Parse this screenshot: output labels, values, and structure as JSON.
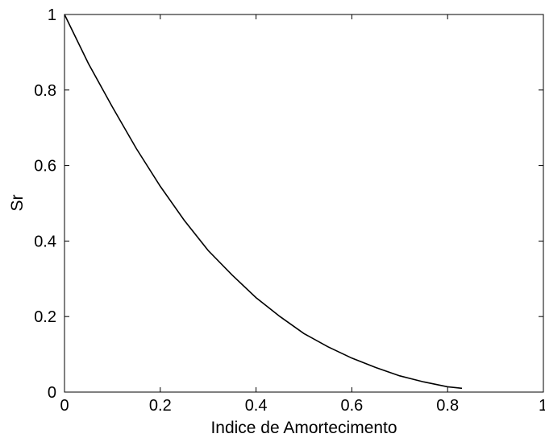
{
  "chart_data": {
    "type": "line",
    "title": "",
    "xlabel": "Indice de Amortecimento",
    "ylabel": "Sr",
    "xlim": [
      0,
      1
    ],
    "ylim": [
      0,
      1
    ],
    "xticks": [
      0,
      0.2,
      0.4,
      0.6,
      0.8,
      1
    ],
    "yticks": [
      0,
      0.2,
      0.4,
      0.6,
      0.8,
      1
    ],
    "xtick_labels": [
      "0",
      "0.2",
      "0.4",
      "0.6",
      "0.8",
      "1"
    ],
    "ytick_labels": [
      "0",
      "0.2",
      "0.4",
      "0.6",
      "0.8",
      "1"
    ],
    "grid": false,
    "legend": "none",
    "line_color": "#000000",
    "series": [
      {
        "x": [
          0,
          0.05,
          0.1,
          0.15,
          0.2,
          0.25,
          0.3,
          0.35,
          0.4,
          0.45,
          0.5,
          0.55,
          0.6,
          0.65,
          0.7,
          0.75,
          0.8,
          0.83
        ],
        "y": [
          1,
          0.87,
          0.755,
          0.645,
          0.545,
          0.455,
          0.375,
          0.31,
          0.25,
          0.2,
          0.155,
          0.12,
          0.09,
          0.065,
          0.043,
          0.027,
          0.014,
          0.01
        ]
      }
    ]
  }
}
